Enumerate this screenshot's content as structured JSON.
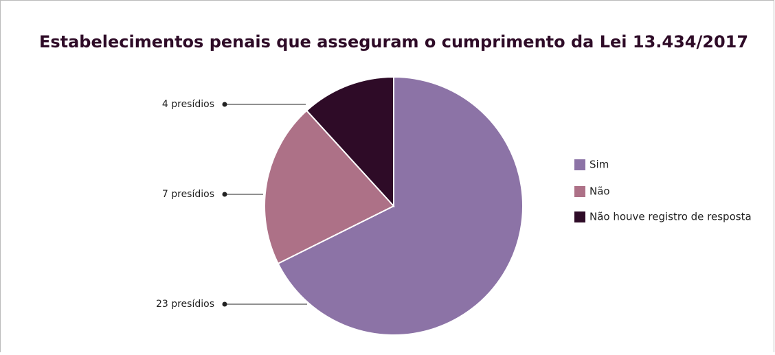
{
  "chart_data": {
    "type": "pie",
    "title": "Estabelecimentos penais que asseguram o cumprimento da Lei 13.434/2017",
    "categories": [
      "Sim",
      "Não",
      "Não houve registro de resposta"
    ],
    "values": [
      23,
      7,
      4
    ],
    "value_labels": [
      "23 presídios",
      "7 presídios",
      "4 presídios"
    ],
    "colors": [
      "#8c73a6",
      "#ad7187",
      "#2e0b27"
    ],
    "legend": "right"
  }
}
